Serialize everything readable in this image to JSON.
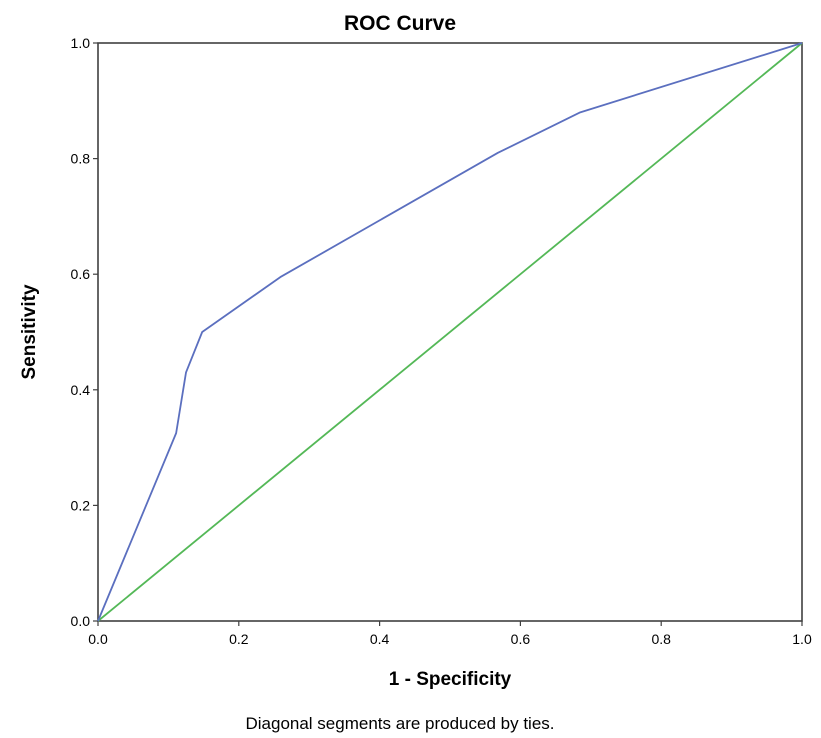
{
  "chart_data": {
    "type": "line",
    "title": "ROC Curve",
    "xlabel": "1 - Specificity",
    "ylabel": "Sensitivity",
    "xlim": [
      0,
      1
    ],
    "ylim": [
      0,
      1
    ],
    "x_ticks": [
      "0.0",
      "0.2",
      "0.4",
      "0.6",
      "0.8",
      "1.0"
    ],
    "y_ticks": [
      "0.0",
      "0.2",
      "0.4",
      "0.6",
      "0.8",
      "1.0"
    ],
    "grid": false,
    "legend": "none",
    "series": [
      {
        "color": "#5b6fbf",
        "x": [
          0.0,
          0.111,
          0.125,
          0.148,
          0.259,
          0.568,
          0.685,
          1.0
        ],
        "y": [
          0.0,
          0.325,
          0.43,
          0.5,
          0.595,
          0.81,
          0.88,
          1.0
        ]
      },
      {
        "color": "#54b857",
        "x": [
          0.0,
          1.0
        ],
        "y": [
          0.0,
          1.0
        ]
      }
    ],
    "footnote": "Diagonal segments are produced by ties."
  }
}
